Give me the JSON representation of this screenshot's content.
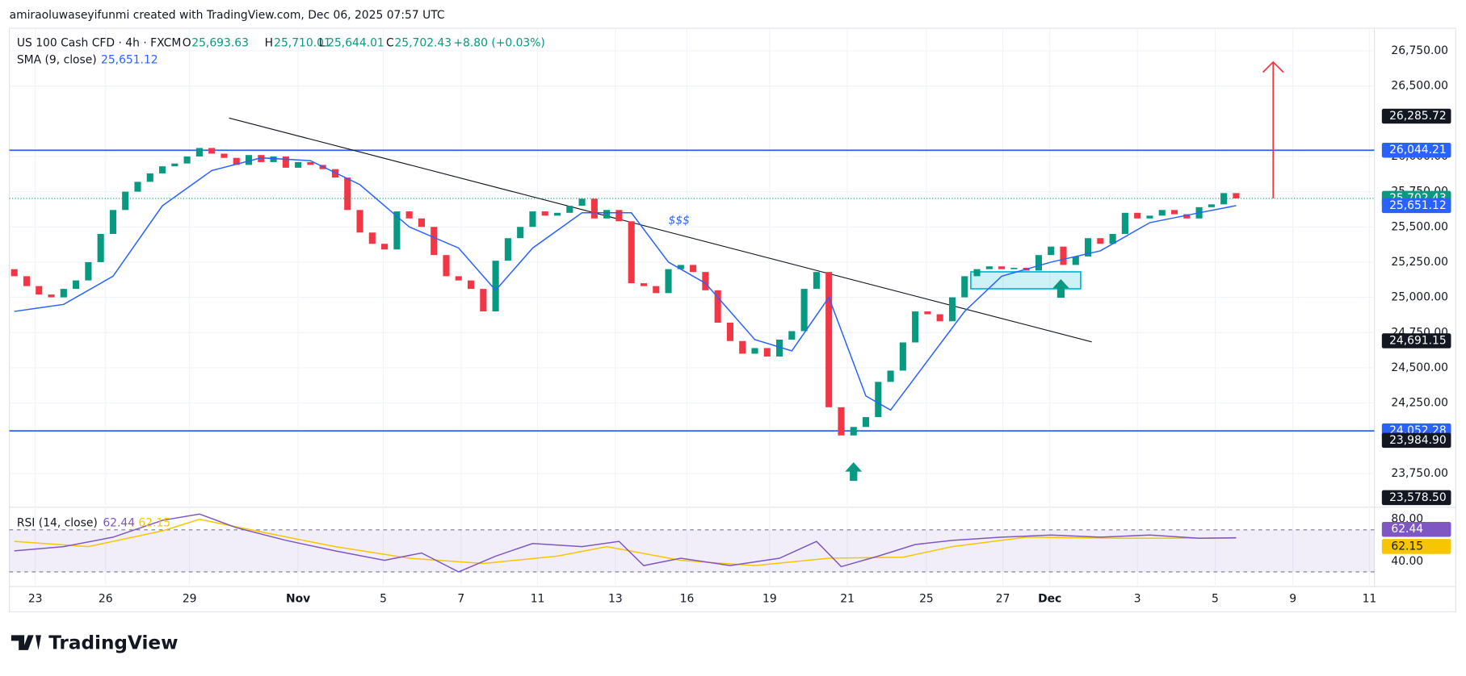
{
  "header": {
    "credit": "amiraoluwaseyifunmi created with TradingView.com, Dec 06, 2025 07:57 UTC",
    "logo": "TradingView"
  },
  "chart_data": {
    "type": "candlestick",
    "legend": {
      "symbol": "US 100 Cash CFD · 4h · FXCM",
      "o_label": "O",
      "o": "25,693.63",
      "h_label": "H",
      "h": "25,710.01",
      "l_label": "L",
      "l": "25,644.01",
      "c_label": "C",
      "c": "25,702.43",
      "change": "+8.80 (+0.03%)"
    },
    "up_color": "#089981",
    "down_color": "#f23645",
    "first_open": 25200,
    "closes": [
      25150,
      25080,
      25020,
      25000,
      25060,
      25120,
      25250,
      25450,
      25620,
      25750,
      25820,
      25880,
      25930,
      25950,
      26000,
      26060,
      26020,
      25990,
      25940,
      26010,
      25960,
      26000,
      25920,
      25960,
      25940,
      25910,
      25850,
      25620,
      25460,
      25380,
      25340,
      25610,
      25560,
      25500,
      25300,
      25150,
      25120,
      25060,
      24900,
      25260,
      25420,
      25500,
      25610,
      25580,
      25600,
      25650,
      25700,
      25560,
      25620,
      25540,
      25100,
      25080,
      25030,
      25200,
      25230,
      25180,
      25050,
      24820,
      24690,
      24600,
      24640,
      24580,
      24700,
      24760,
      25060,
      25180,
      24220,
      24020,
      24080,
      24150,
      24400,
      24480,
      24680,
      24900,
      24880,
      24830,
      25000,
      25150,
      25200,
      25220,
      25200,
      25210,
      25190,
      25300,
      25360,
      25230,
      25290,
      25420,
      25380,
      25450,
      25600,
      25560,
      25580,
      25620,
      25590,
      25560,
      25640,
      25660,
      25740,
      25702.43
    ],
    "sma": {
      "name": "SMA (9, close)",
      "value_label": "25,651.12",
      "color": "#2962ff",
      "x": [
        0,
        4,
        8,
        12,
        16,
        20,
        24,
        28,
        32,
        36,
        39,
        42,
        46,
        50,
        53,
        56,
        60,
        63,
        66,
        69,
        71,
        74,
        77,
        80,
        84,
        88,
        92,
        96,
        99
      ],
      "values": [
        24900,
        24950,
        25150,
        25650,
        25900,
        25990,
        25970,
        25800,
        25500,
        25350,
        25050,
        25350,
        25600,
        25600,
        25250,
        25100,
        24700,
        24620,
        25000,
        24300,
        24200,
        24550,
        24900,
        25150,
        25250,
        25330,
        25530,
        25600,
        25651.12
      ]
    },
    "xlim": [
      -0.4,
      110.2
    ],
    "xticks": [
      {
        "value": 1.7,
        "label": "23"
      },
      {
        "value": 7.4,
        "label": "26"
      },
      {
        "value": 14.2,
        "label": "29"
      },
      {
        "value": 23,
        "label": "Nov"
      },
      {
        "value": 29.9,
        "label": "5"
      },
      {
        "value": 36.2,
        "label": "7"
      },
      {
        "value": 42.4,
        "label": "11"
      },
      {
        "value": 48.7,
        "label": "13"
      },
      {
        "value": 54.5,
        "label": "16"
      },
      {
        "value": 61.2,
        "label": "19"
      },
      {
        "value": 67.5,
        "label": "21"
      },
      {
        "value": 73.9,
        "label": "25"
      },
      {
        "value": 80.1,
        "label": "27"
      },
      {
        "value": 83.9,
        "label": "Dec"
      },
      {
        "value": 91,
        "label": "3"
      },
      {
        "value": 97.3,
        "label": "5"
      },
      {
        "value": 103.6,
        "label": "9"
      },
      {
        "value": 109.8,
        "label": "11"
      }
    ],
    "ylim": [
      23510,
      26910
    ],
    "yticks": [
      {
        "value": 26750,
        "label": "26,750.00"
      },
      {
        "value": 26500,
        "label": "26,500.00"
      },
      {
        "value": 26000,
        "label": "26,000.00"
      },
      {
        "value": 25750,
        "label": "25,750.00"
      },
      {
        "value": 25500,
        "label": "25,500.00"
      },
      {
        "value": 25250,
        "label": "25,250.00"
      },
      {
        "value": 25000,
        "label": "25,000.00"
      },
      {
        "value": 24750,
        "label": "24,750.00"
      },
      {
        "value": 24500,
        "label": "24,500.00"
      },
      {
        "value": 24250,
        "label": "24,250.00"
      },
      {
        "value": 23750,
        "label": "23,750.00"
      }
    ],
    "price_labels": [
      {
        "value": 26285.72,
        "label": "26,285.72",
        "color": "#131722"
      },
      {
        "value": 26044.21,
        "label": "26,044.21",
        "color": "#2962ff"
      },
      {
        "value": 25702.43,
        "label": "25,702.43",
        "color": "#089981"
      },
      {
        "value": 25651.12,
        "label": "25,651.12",
        "color": "#2962ff"
      },
      {
        "value": 24691.15,
        "label": "24,691.15",
        "color": "#131722"
      },
      {
        "value": 24052.28,
        "label": "24,052.28",
        "color": "#2962ff"
      },
      {
        "value": 23984.9,
        "label": "23,984.90",
        "color": "#131722"
      },
      {
        "value": 23578.5,
        "label": "23,578.50",
        "color": "#131722"
      }
    ],
    "hlines": [
      {
        "value": 26044.21,
        "color": "#2962ff"
      },
      {
        "value": 24052.28,
        "color": "#2962ff"
      }
    ],
    "trendline": {
      "x": [
        17.4,
        87.3
      ],
      "values": [
        26273,
        24684
      ]
    },
    "zone": {
      "x": [
        77.5,
        86.4
      ],
      "values": [
        25181,
        25061
      ]
    },
    "up_arrows": {
      "x": [
        68,
        84.8
      ],
      "values": [
        23750,
        25050
      ]
    },
    "target_arrow": {
      "x": 102,
      "values": [
        25702.43,
        26670
      ]
    },
    "note": {
      "text": "$$$",
      "x": 53,
      "value": 25545
    },
    "rsi": {
      "name": "RSI (14, close)",
      "value_label": "62.44",
      "ma_label": "62.15",
      "color": "#7e57c2",
      "ma_color": "#f7c600",
      "x": [
        0,
        4,
        8,
        12,
        15,
        18,
        22,
        26,
        30,
        33,
        36,
        39,
        42,
        46,
        49,
        51,
        54,
        58,
        62,
        65,
        67,
        70,
        73,
        76,
        80,
        84,
        88,
        92,
        96,
        99
      ],
      "values": [
        50,
        54,
        63,
        79,
        85,
        72,
        60,
        50,
        41,
        48,
        30,
        45,
        57,
        54,
        59,
        36,
        43,
        36,
        43,
        59,
        35,
        45,
        56,
        60,
        63,
        65,
        63,
        65,
        62,
        62.44
      ],
      "ma_x": [
        0,
        6,
        12,
        15,
        20,
        26,
        32,
        38,
        44,
        48,
        54,
        60,
        66,
        72,
        76,
        82,
        90,
        99
      ],
      "ma_values": [
        59,
        54,
        69,
        80,
        68,
        54,
        43,
        38,
        45,
        54,
        41,
        36,
        43,
        44,
        54,
        63,
        62,
        62.15
      ],
      "band": [
        70,
        30
      ],
      "ylim": [
        16,
        87
      ],
      "yticks": [
        {
          "value": 80,
          "label": "80.00"
        },
        {
          "value": 40,
          "label": "40.00"
        }
      ]
    }
  }
}
